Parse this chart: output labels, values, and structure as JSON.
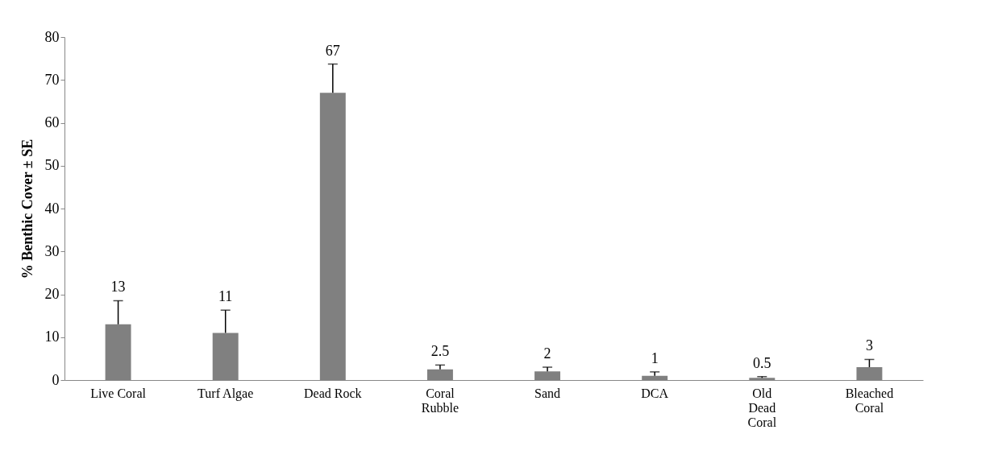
{
  "chart_data": {
    "type": "bar",
    "ylabel": "% Benthic Cover ± SE",
    "categories": [
      "Live Coral",
      "Turf Algae",
      "Dead Rock",
      "Coral Rubble",
      "Sand",
      "DCA",
      "Old Dead Coral",
      "Bleached Coral"
    ],
    "values": [
      13,
      11,
      67,
      2.5,
      2,
      1,
      0.5,
      3
    ],
    "errors": [
      [
        13,
        18.5
      ],
      [
        11,
        16.3
      ],
      [
        67,
        73.7
      ],
      [
        2.5,
        3.5
      ],
      [
        2,
        3
      ],
      [
        1,
        1.9
      ],
      [
        0.5,
        0.8
      ],
      [
        3,
        4.8
      ]
    ],
    "color": "#808080",
    "ylim": [
      0,
      80
    ],
    "yticks": [
      0,
      10,
      20,
      30,
      40,
      50,
      60,
      70,
      80
    ],
    "grid": false,
    "data_labels": true
  }
}
